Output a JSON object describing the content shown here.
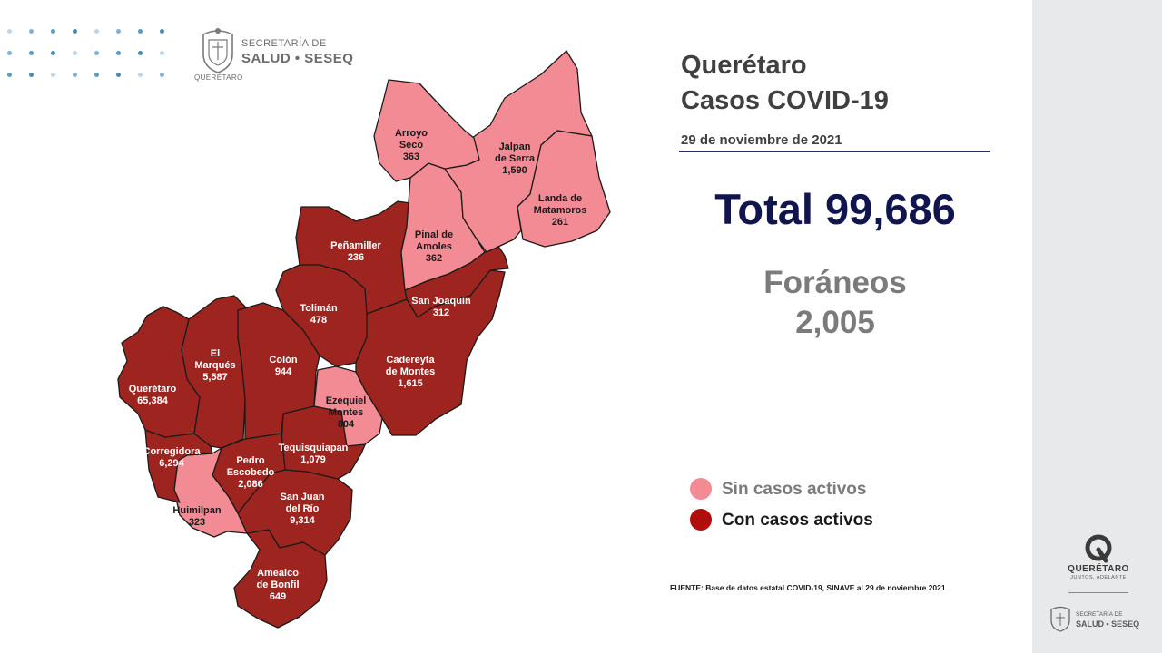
{
  "header": {
    "logo_line1": "SECRETARÍA DE",
    "logo_line2": "SALUD • SESEQ",
    "logo_line3": "QUERÉTARO",
    "title_line1": "Querétaro",
    "title_line2": "Casos COVID-19",
    "date": "29 de noviembre de 2021"
  },
  "summary": {
    "total_label": "Total 99,686",
    "foraneos_label": "Foráneos",
    "foraneos_value": "2,005"
  },
  "legend": {
    "inactive_label": "Sin casos activos",
    "active_label": "Con casos activos",
    "inactive_color": "#f28b93",
    "active_color": "#9e2420"
  },
  "source": "FUENTE: Base de datos estatal COVID-19, SINAVE al 29 de noviembre 2021",
  "sidebar": {
    "brand": "QUERÉTARO",
    "tagline": "JUNTOS, ADELANTE",
    "logo_line1": "SECRETARÍA DE",
    "logo_line2": "SALUD • SESEQ"
  },
  "municipalities": [
    {
      "id": "arroyo-seco",
      "name_lines": [
        "Arroyo",
        "Seco"
      ],
      "cases": "363",
      "status": "inactive"
    },
    {
      "id": "jalpan",
      "name_lines": [
        "Jalpan",
        "de Serra"
      ],
      "cases": "1,590",
      "status": "inactive"
    },
    {
      "id": "landa",
      "name_lines": [
        "Landa de",
        "Matamoros"
      ],
      "cases": "261",
      "status": "inactive"
    },
    {
      "id": "pinal",
      "name_lines": [
        "Pinal de",
        "Amoles"
      ],
      "cases": "362",
      "status": "inactive"
    },
    {
      "id": "penamiller",
      "name_lines": [
        "Peñamiller"
      ],
      "cases": "236",
      "status": "active"
    },
    {
      "id": "san-joaquin",
      "name_lines": [
        "San Joaquín"
      ],
      "cases": "312",
      "status": "active"
    },
    {
      "id": "toliman",
      "name_lines": [
        "Tolimán"
      ],
      "cases": "478",
      "status": "active"
    },
    {
      "id": "el-marques",
      "name_lines": [
        "El",
        "Marqués"
      ],
      "cases": "5,587",
      "status": "active"
    },
    {
      "id": "colon",
      "name_lines": [
        "Colón"
      ],
      "cases": "944",
      "status": "active"
    },
    {
      "id": "cadereyta",
      "name_lines": [
        "Cadereyta",
        "de Montes"
      ],
      "cases": "1,615",
      "status": "active"
    },
    {
      "id": "queretaro",
      "name_lines": [
        "Querétaro"
      ],
      "cases": "65,384",
      "status": "active"
    },
    {
      "id": "ezequiel",
      "name_lines": [
        "Ezequiel",
        "Montes"
      ],
      "cases": "804",
      "status": "inactive"
    },
    {
      "id": "corregidora",
      "name_lines": [
        "Corregidora"
      ],
      "cases": "6,294",
      "status": "active"
    },
    {
      "id": "tequisquiapan",
      "name_lines": [
        "Tequisquiapan"
      ],
      "cases": "1,079",
      "status": "active"
    },
    {
      "id": "pedro-escobedo",
      "name_lines": [
        "Pedro",
        "Escobedo"
      ],
      "cases": "2,086",
      "status": "active"
    },
    {
      "id": "huimilpan",
      "name_lines": [
        "Huimilpan"
      ],
      "cases": "323",
      "status": "inactive"
    },
    {
      "id": "san-juan",
      "name_lines": [
        "San Juan",
        "del Río"
      ],
      "cases": "9,314",
      "status": "active"
    },
    {
      "id": "amealco",
      "name_lines": [
        "Amealco",
        "de Bonfil"
      ],
      "cases": "649",
      "status": "active"
    }
  ]
}
